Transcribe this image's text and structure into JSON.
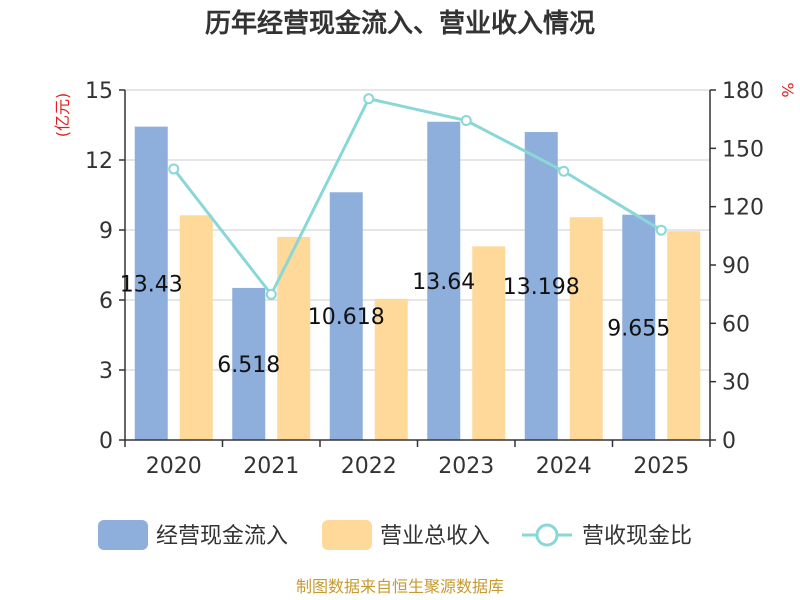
{
  "chart_data": {
    "type": "bar",
    "title": "历年经营现金流入、营业收入情况",
    "categories": [
      "2020",
      "2021",
      "2022",
      "2023",
      "2024",
      "2025"
    ],
    "left_axis": {
      "unit": "(亿元)",
      "ylim": [
        0,
        15
      ],
      "ticks": [
        "0",
        "3",
        "6",
        "9",
        "12",
        "15"
      ]
    },
    "right_axis": {
      "unit": "%",
      "ylim": [
        0,
        180
      ],
      "ticks": [
        "0",
        "30",
        "60",
        "90",
        "120",
        "150",
        "180"
      ]
    },
    "series": [
      {
        "name": "经营现金流入",
        "type": "bar",
        "axis": "left",
        "color": "#8eaedb",
        "values": [
          13.43,
          6.518,
          10.618,
          13.64,
          13.198,
          9.655
        ],
        "labels": [
          "13.43",
          "6.518",
          "10.618",
          "13.64",
          "13.198",
          "9.655"
        ]
      },
      {
        "name": "营业总收入",
        "type": "bar",
        "axis": "left",
        "color": "#ffd99a",
        "values": [
          9.63,
          8.7,
          6.05,
          8.3,
          9.55,
          8.95
        ]
      },
      {
        "name": "营收现金比",
        "type": "line",
        "axis": "right",
        "color": "#8ad7d8",
        "values": [
          139.4,
          74.9,
          175.5,
          164.3,
          138.2,
          107.9
        ]
      }
    ],
    "grid": true,
    "legend_position": "bottom"
  },
  "source": "制图数据来自恒生聚源数据库"
}
